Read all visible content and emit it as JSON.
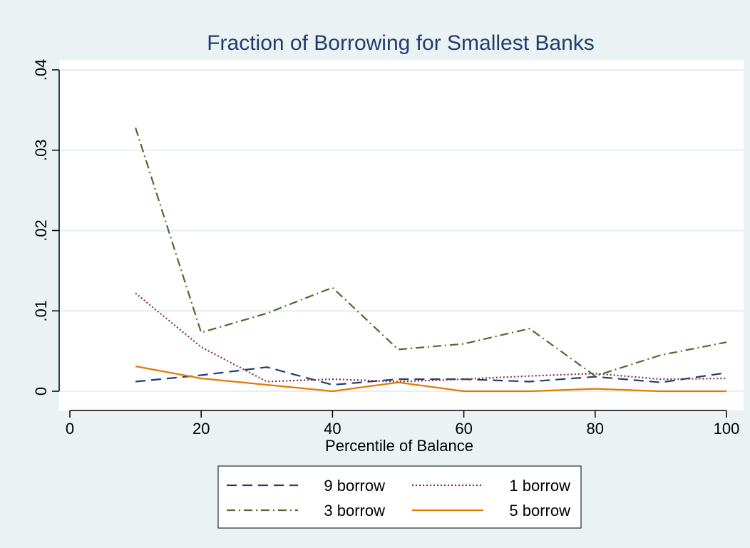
{
  "colors": {
    "background": "#eaf2f3",
    "plot_background": "#ffffff",
    "grid": "#e6eef1",
    "axis": "#000000",
    "title": "#1f3d6e",
    "series_9": "#1f3d6e",
    "series_1": "#8a2a3c",
    "series_3": "#4a6e2a",
    "series_5": "#e07b00"
  },
  "chart_data": {
    "type": "line",
    "title": "Fraction of Borrowing for Smallest Banks",
    "xlabel": "Percentile of Balance",
    "ylabel": "",
    "xlim": [
      0,
      100
    ],
    "ylim": [
      0,
      0.04
    ],
    "xticks": [
      0,
      20,
      40,
      60,
      80,
      100
    ],
    "xtick_labels": [
      "0",
      "20",
      "40",
      "60",
      "80",
      "100"
    ],
    "yticks": [
      0,
      0.01,
      0.02,
      0.03,
      0.04
    ],
    "ytick_labels": [
      "0",
      ".01",
      ".02",
      ".03",
      ".04"
    ],
    "grid": true,
    "legend_position": "bottom",
    "x": [
      10,
      20,
      30,
      40,
      50,
      60,
      70,
      80,
      90,
      100
    ],
    "series": [
      {
        "name": "9 borrow",
        "style": "dashed",
        "color": "#1f3d6e",
        "values": [
          0.0012,
          0.002,
          0.003,
          0.0008,
          0.0015,
          0.0015,
          0.0012,
          0.0018,
          0.0011,
          0.0023
        ]
      },
      {
        "name": "1 borrow",
        "style": "dotted",
        "color": "#8a2a3c",
        "values": [
          0.0122,
          0.0055,
          0.0012,
          0.0015,
          0.0012,
          0.0015,
          0.0019,
          0.0022,
          0.0015,
          0.0016
        ]
      },
      {
        "name": "3 borrow",
        "style": "dashdot",
        "color": "#4a6e2a",
        "values": [
          0.0328,
          0.0073,
          0.0097,
          0.0129,
          0.0052,
          0.0059,
          0.0078,
          0.0019,
          0.0045,
          0.0061
        ]
      },
      {
        "name": "5 borrow",
        "style": "solid",
        "color": "#e07b00",
        "values": [
          0.0031,
          0.0016,
          0.0008,
          0.0,
          0.0011,
          0.0,
          0.0,
          0.0003,
          0.0,
          0.0
        ]
      }
    ]
  }
}
